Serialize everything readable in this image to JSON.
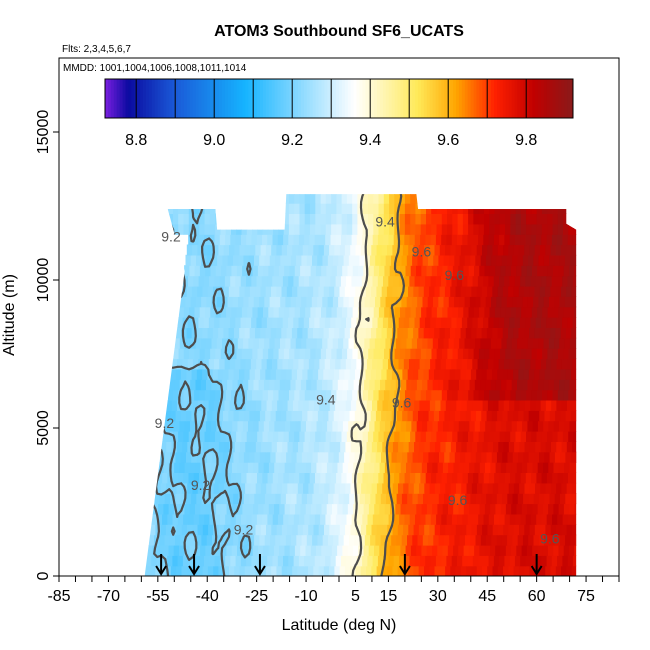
{
  "chart_data": {
    "type": "heatmap",
    "title": "ATOM3 Southbound SF6_UCATS",
    "flights_note": "Flts: 2,3,4,5,6,7",
    "dates_note": "MMDD: 1001,1004,1006,1008,1011,1014",
    "xlabel": "Latitude (deg N)",
    "ylabel": "Altitude (m)",
    "xlim": [
      -85,
      85
    ],
    "ylim": [
      0,
      17500
    ],
    "x_ticks": [
      -85,
      -70,
      -55,
      -40,
      -25,
      -10,
      5,
      15,
      30,
      45,
      60,
      75
    ],
    "y_ticks": [
      0,
      5000,
      10000,
      15000
    ],
    "colorbar": {
      "range": [
        8.72,
        9.92
      ],
      "ticks": [
        8.8,
        9.0,
        9.2,
        9.4,
        9.6,
        9.8
      ],
      "colors": [
        "#7a1fe0",
        "#0a0aa0",
        "#1a5ad8",
        "#16b4ff",
        "#ffffff",
        "#ffea5a",
        "#ffa500",
        "#ff2000",
        "#c00000",
        "#8a1a1a"
      ]
    },
    "profile_markers_lat": [
      -54,
      -44,
      -24,
      20,
      60
    ],
    "contour_labels": [
      {
        "text": "9.2",
        "lat": -51,
        "alt": 11300
      },
      {
        "text": "9.2",
        "lat": -53,
        "alt": 5000
      },
      {
        "text": "9.2",
        "lat": -42,
        "alt": 2900
      },
      {
        "text": "9.2",
        "lat": -29,
        "alt": 1400
      },
      {
        "text": "9.4",
        "lat": 14,
        "alt": 11800
      },
      {
        "text": "9.4",
        "lat": -4,
        "alt": 5800
      },
      {
        "text": "9.6",
        "lat": 25,
        "alt": 10800
      },
      {
        "text": "9.6",
        "lat": 19,
        "alt": 5700
      },
      {
        "text": "9.6",
        "lat": 36,
        "alt": 2400
      },
      {
        "text": "9.6",
        "lat": 64,
        "alt": 1100
      },
      {
        "text": "9.6",
        "lat": 35,
        "alt": 10000
      }
    ],
    "grid": false,
    "legend": "top-inset colorbar"
  }
}
